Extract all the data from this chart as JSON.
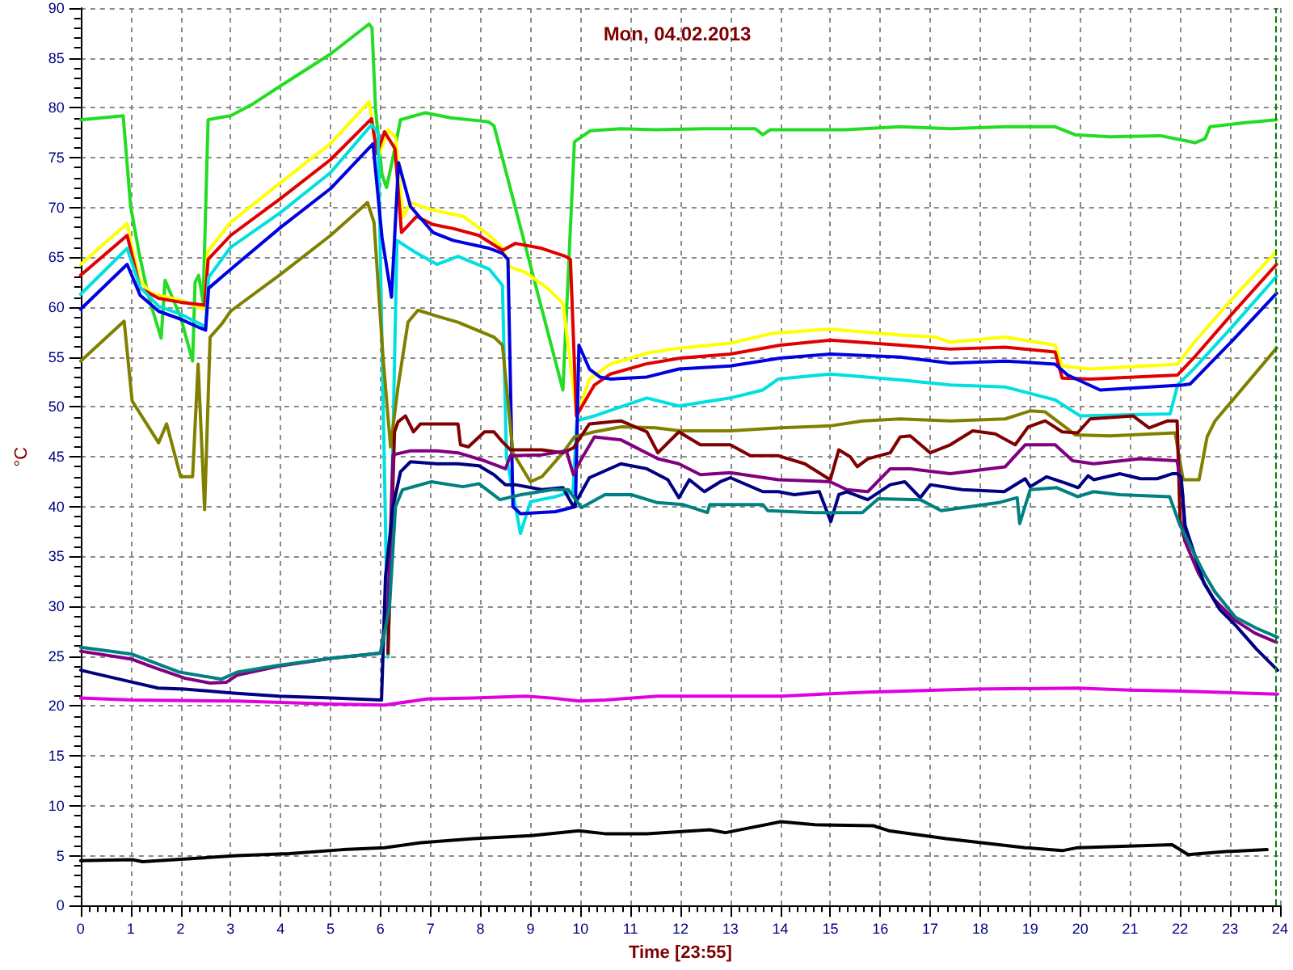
{
  "chart_data": {
    "type": "line",
    "title": "Mon, 04.02.2013",
    "xlabel": "Time [23:55]",
    "ylabel": "°C",
    "xlim": [
      0,
      24
    ],
    "xticks": [
      0,
      1,
      2,
      3,
      4,
      5,
      6,
      7,
      8,
      9,
      10,
      11,
      12,
      13,
      14,
      15,
      16,
      17,
      18,
      19,
      20,
      21,
      22,
      23,
      24
    ],
    "ylim": [
      0,
      90
    ],
    "yticks": [
      0,
      5,
      10,
      15,
      20,
      25,
      30,
      35,
      40,
      45,
      50,
      55,
      60,
      65,
      70,
      75,
      80,
      85,
      90
    ],
    "grid": true,
    "marker": "none",
    "ref_lines": [
      {
        "axis": "x",
        "value": 23.92,
        "color": "#008000",
        "line_style": "dashed"
      }
    ],
    "series": [
      {
        "color": "#22dd22",
        "x": [
          0,
          0.85,
          1.0,
          1.17,
          1.35,
          1.61,
          1.69,
          2.0,
          2.24,
          2.29,
          2.36,
          2.45,
          2.55,
          2.75,
          3.0,
          3.45,
          4.0,
          5.0,
          5.77,
          5.83,
          5.9,
          6.03,
          6.12,
          6.25,
          6.4,
          6.9,
          7.4,
          8.16,
          8.27,
          9.65,
          9.88,
          10.2,
          10.8,
          11.5,
          12.5,
          13.5,
          13.65,
          13.8,
          14.5,
          15.3,
          16.4,
          17.4,
          18.5,
          19.5,
          19.9,
          20.6,
          21.6,
          22.0,
          22.3,
          22.5,
          22.6,
          23.3,
          23.93
        ],
        "values": [
          78.8,
          79.2,
          70.1,
          65.4,
          61.2,
          56.9,
          62.7,
          59.0,
          54.6,
          62.5,
          63.2,
          60.5,
          78.8,
          79.0,
          79.2,
          80.4,
          82.2,
          85.4,
          88.4,
          88.0,
          79.9,
          73.3,
          72.0,
          75.0,
          78.8,
          79.5,
          79.0,
          78.6,
          78.2,
          51.7,
          76.6,
          77.7,
          77.9,
          77.8,
          77.9,
          77.9,
          77.3,
          77.8,
          77.8,
          77.8,
          78.1,
          77.9,
          78.1,
          78.1,
          77.3,
          77.1,
          77.2,
          76.8,
          76.5,
          76.9,
          78.1,
          78.5,
          78.8
        ]
      },
      {
        "color": "#ffff00",
        "x": [
          0,
          0.93,
          1.03,
          1.19,
          1.4,
          2.0,
          2.48,
          2.54,
          3.0,
          4.0,
          5.0,
          5.77,
          5.95,
          6.15,
          6.3,
          6.45,
          6.6,
          7.0,
          7.66,
          8.18,
          8.44,
          8.6,
          8.9,
          9.34,
          9.65,
          9.93,
          10.18,
          10.6,
          11.33,
          11.97,
          13.0,
          13.86,
          15.0,
          16.4,
          17.1,
          17.4,
          18.5,
          19.5,
          19.64,
          20.2,
          21.95,
          22.27,
          23.0,
          23.93
        ],
        "values": [
          64.3,
          68.4,
          65.9,
          62.7,
          61.4,
          60.7,
          59.8,
          65.6,
          68.5,
          72.5,
          76.4,
          80.6,
          75.0,
          77.8,
          77.0,
          69.0,
          70.5,
          69.8,
          69.1,
          67.2,
          65.9,
          64.0,
          63.5,
          61.9,
          60.4,
          49.1,
          52.8,
          54.3,
          55.4,
          55.9,
          56.4,
          57.4,
          57.8,
          57.2,
          57.0,
          56.5,
          57.0,
          56.2,
          54.1,
          53.8,
          54.3,
          56.4,
          60.6,
          65.6
        ]
      },
      {
        "color": "#e00000",
        "x": [
          0,
          0.93,
          1.19,
          1.56,
          2.0,
          2.48,
          2.55,
          3.0,
          4.0,
          5.0,
          5.82,
          5.93,
          6.08,
          6.29,
          6.42,
          6.72,
          7.05,
          7.45,
          7.97,
          8.44,
          8.7,
          9.23,
          9.7,
          9.8,
          9.92,
          10.28,
          10.6,
          11.3,
          12.0,
          13.0,
          14.0,
          15.0,
          16.4,
          17.4,
          18.5,
          19.5,
          19.64,
          20.2,
          21.95,
          22.27,
          23.0,
          23.93
        ],
        "values": [
          63.2,
          67.2,
          61.9,
          60.9,
          60.5,
          60.2,
          64.8,
          67.2,
          70.9,
          74.8,
          78.9,
          75.4,
          77.6,
          75.9,
          67.5,
          69.1,
          68.3,
          67.9,
          67.2,
          65.7,
          66.4,
          65.9,
          65.1,
          64.8,
          49.1,
          52.2,
          53.3,
          54.3,
          54.9,
          55.3,
          56.2,
          56.7,
          56.2,
          55.8,
          56.0,
          55.5,
          52.9,
          52.8,
          53.2,
          54.9,
          59.1,
          64.3
        ]
      },
      {
        "color": "#00e0e0",
        "x": [
          0,
          0.93,
          1.19,
          1.56,
          2.0,
          2.4,
          2.5,
          2.56,
          3.0,
          4.0,
          5.0,
          5.82,
          5.95,
          6.15,
          6.22,
          6.33,
          6.7,
          7.13,
          7.55,
          8.18,
          8.44,
          8.52,
          8.8,
          9.0,
          9.5,
          9.85,
          9.93,
          10.28,
          11.33,
          11.97,
          13.0,
          13.65,
          13.96,
          15.0,
          16.4,
          17.4,
          18.5,
          19.5,
          20.0,
          21.8,
          21.95,
          22.27,
          23.0,
          23.93
        ],
        "values": [
          61.3,
          65.9,
          62.0,
          60.1,
          59.3,
          58.3,
          58.0,
          63.0,
          66.0,
          69.5,
          73.5,
          78.3,
          77.5,
          24.9,
          40.0,
          66.7,
          65.5,
          64.3,
          65.1,
          63.8,
          62.2,
          45.0,
          37.3,
          40.5,
          41.0,
          41.5,
          48.6,
          49.1,
          50.9,
          50.1,
          50.9,
          51.7,
          52.8,
          53.3,
          52.7,
          52.2,
          52.0,
          50.7,
          49.1,
          49.3,
          52.2,
          53.8,
          57.8,
          63.1
        ]
      },
      {
        "color": "#0000e0",
        "x": [
          0,
          0.93,
          1.19,
          1.56,
          2.0,
          2.4,
          2.5,
          2.56,
          3.0,
          4.0,
          5.0,
          5.85,
          6.03,
          6.22,
          6.36,
          6.6,
          7.05,
          7.45,
          8.18,
          8.44,
          8.55,
          8.65,
          8.8,
          9.5,
          9.9,
          9.97,
          10.18,
          10.39,
          10.6,
          11.33,
          11.97,
          13.0,
          14.0,
          15.0,
          16.4,
          17.4,
          18.5,
          19.5,
          19.75,
          20.4,
          22.06,
          22.2,
          23.0,
          23.93
        ],
        "values": [
          59.8,
          64.3,
          61.2,
          59.6,
          58.8,
          57.9,
          57.7,
          61.9,
          63.8,
          68.0,
          71.9,
          76.4,
          67.0,
          61.0,
          74.5,
          70.1,
          67.5,
          66.7,
          65.9,
          65.4,
          64.8,
          40.0,
          39.3,
          39.5,
          40.0,
          56.2,
          53.8,
          53.0,
          52.8,
          53.0,
          53.8,
          54.1,
          54.9,
          55.3,
          55.0,
          54.4,
          54.6,
          54.3,
          53.2,
          51.7,
          52.2,
          52.3,
          56.4,
          61.4
        ]
      },
      {
        "color": "#808000",
        "x": [
          0,
          0.87,
          1.03,
          1.56,
          1.72,
          2.0,
          2.24,
          2.35,
          2.48,
          2.59,
          2.82,
          3.0,
          4.0,
          5.0,
          5.74,
          5.87,
          6.05,
          6.2,
          6.35,
          6.55,
          6.75,
          7.13,
          7.55,
          8.27,
          8.44,
          8.65,
          9.0,
          9.23,
          9.65,
          9.88,
          10.28,
          10.81,
          11.5,
          12.0,
          13.0,
          14.0,
          15.0,
          15.65,
          16.4,
          17.4,
          18.5,
          19.0,
          19.3,
          19.75,
          19.9,
          20.6,
          21.9,
          22.06,
          22.38,
          22.54,
          22.7,
          23.93
        ],
        "values": [
          54.6,
          58.6,
          50.6,
          46.4,
          48.3,
          43.0,
          43.0,
          54.3,
          39.7,
          57.0,
          58.3,
          59.6,
          63.3,
          67.2,
          70.5,
          68.5,
          55.0,
          46.0,
          52.0,
          58.5,
          59.7,
          59.1,
          58.5,
          57.0,
          56.2,
          45.4,
          42.5,
          43.0,
          45.4,
          47.0,
          47.5,
          48.0,
          47.9,
          47.6,
          47.6,
          47.9,
          48.1,
          48.6,
          48.8,
          48.6,
          48.8,
          49.6,
          49.5,
          47.8,
          47.2,
          47.1,
          47.4,
          42.7,
          42.7,
          47.0,
          48.6,
          55.9
        ]
      },
      {
        "color": "#800000",
        "x": [
          6.15,
          6.28,
          6.35,
          6.5,
          6.66,
          6.8,
          7.13,
          7.55,
          7.6,
          7.76,
          8.08,
          8.27,
          8.44,
          8.6,
          9.23,
          9.65,
          9.86,
          10.18,
          10.81,
          11.33,
          11.55,
          11.97,
          12.4,
          13.0,
          13.4,
          13.96,
          14.49,
          15.0,
          15.17,
          15.4,
          15.54,
          15.75,
          16.2,
          16.4,
          16.6,
          17.0,
          17.4,
          17.85,
          18.3,
          18.7,
          18.96,
          19.3,
          19.64,
          19.95,
          20.2,
          21.06,
          21.38,
          21.75,
          21.94,
          22.0,
          22.1
        ],
        "values": [
          25.3,
          47.5,
          48.5,
          49.1,
          47.5,
          48.3,
          48.3,
          48.3,
          46.2,
          46.0,
          47.5,
          47.5,
          46.5,
          45.7,
          45.7,
          45.4,
          45.9,
          48.3,
          48.6,
          47.5,
          45.4,
          47.5,
          46.2,
          46.2,
          45.1,
          45.1,
          44.3,
          42.7,
          45.7,
          45.0,
          44.0,
          44.8,
          45.4,
          47.0,
          47.1,
          45.4,
          46.2,
          47.6,
          47.3,
          46.2,
          48.0,
          48.6,
          47.5,
          47.4,
          48.8,
          49.1,
          47.9,
          48.6,
          48.6,
          38.6,
          36.5
        ]
      },
      {
        "color": "#800080",
        "x": [
          0,
          1.03,
          1.45,
          2.08,
          2.6,
          2.92,
          3.13,
          3.97,
          5.03,
          6.0,
          6.15,
          6.25,
          6.6,
          7.13,
          7.55,
          8.08,
          8.5,
          8.6,
          9.23,
          9.72,
          9.86,
          10.0,
          10.28,
          10.81,
          11.55,
          11.97,
          12.4,
          13.0,
          13.96,
          15.0,
          15.33,
          15.75,
          16.2,
          16.6,
          17.4,
          18.5,
          18.9,
          19.5,
          19.85,
          20.27,
          21.2,
          21.94,
          22.05,
          22.1,
          22.37,
          22.68,
          23.1,
          23.5,
          23.93
        ],
        "values": [
          25.5,
          24.7,
          23.9,
          22.8,
          22.3,
          22.4,
          23.1,
          24.0,
          24.8,
          25.3,
          30.0,
          45.2,
          45.6,
          45.6,
          45.4,
          44.6,
          43.8,
          45.1,
          45.2,
          45.6,
          43.2,
          44.6,
          47.0,
          46.7,
          44.8,
          44.3,
          43.2,
          43.4,
          42.7,
          42.5,
          41.7,
          41.5,
          43.8,
          43.8,
          43.3,
          44.0,
          46.2,
          46.2,
          44.6,
          44.3,
          44.8,
          44.6,
          41.2,
          36.5,
          33.3,
          30.7,
          28.6,
          27.3,
          26.4
        ]
      },
      {
        "color": "#000080",
        "x": [
          0,
          1.03,
          1.55,
          2.08,
          3.06,
          3.97,
          5.03,
          6.02,
          6.1,
          6.25,
          6.4,
          6.6,
          7.13,
          7.55,
          7.97,
          8.27,
          8.5,
          8.7,
          9.23,
          9.65,
          9.86,
          10.18,
          10.81,
          11.33,
          11.75,
          11.97,
          12.18,
          12.48,
          12.8,
          13.0,
          13.65,
          13.96,
          14.28,
          14.78,
          15.01,
          15.17,
          15.33,
          15.75,
          16.2,
          16.49,
          16.8,
          17.0,
          17.64,
          18.48,
          18.9,
          19.0,
          19.33,
          19.74,
          19.96,
          20.16,
          20.27,
          20.8,
          21.21,
          21.54,
          21.84,
          21.94,
          22.02,
          22.1,
          22.48,
          22.79,
          23.11,
          23.53,
          23.95
        ],
        "values": [
          23.6,
          22.4,
          21.8,
          21.7,
          21.3,
          21.0,
          20.8,
          20.6,
          33.0,
          40.0,
          43.5,
          44.5,
          44.3,
          44.3,
          44.1,
          43.2,
          42.2,
          42.2,
          41.7,
          41.9,
          40.0,
          42.9,
          44.3,
          43.8,
          42.7,
          40.9,
          42.7,
          41.5,
          42.5,
          42.9,
          41.5,
          41.5,
          41.2,
          41.5,
          38.5,
          41.2,
          41.5,
          40.7,
          42.2,
          42.5,
          40.9,
          42.2,
          41.7,
          41.5,
          42.8,
          42.0,
          43.0,
          42.3,
          41.9,
          43.1,
          42.7,
          43.3,
          42.8,
          42.8,
          43.3,
          43.3,
          43.0,
          38.1,
          32.3,
          29.7,
          28.1,
          25.7,
          23.6
        ]
      },
      {
        "color": "#008080",
        "x": [
          0,
          1.03,
          1.98,
          2.82,
          3.13,
          3.97,
          5.03,
          6.0,
          6.18,
          6.3,
          6.44,
          7.02,
          7.65,
          7.97,
          8.39,
          8.81,
          9.44,
          9.76,
          10.02,
          10.49,
          11.02,
          11.54,
          12.06,
          12.54,
          12.59,
          13.65,
          13.75,
          14.69,
          15.64,
          15.96,
          16.8,
          17.22,
          18.37,
          18.74,
          18.79,
          19.0,
          19.53,
          19.95,
          20.27,
          20.79,
          21.79,
          22.0,
          22.16,
          22.48,
          22.69,
          23.11,
          23.53,
          23.95
        ],
        "values": [
          25.9,
          25.2,
          23.4,
          22.7,
          23.4,
          24.1,
          24.8,
          25.3,
          30.0,
          40.0,
          41.7,
          42.5,
          42.0,
          42.3,
          40.7,
          41.2,
          41.7,
          41.7,
          39.9,
          41.2,
          41.2,
          40.4,
          40.2,
          39.4,
          40.2,
          40.2,
          39.6,
          39.4,
          39.4,
          40.8,
          40.7,
          39.6,
          40.4,
          40.9,
          38.3,
          41.7,
          41.9,
          41.0,
          41.5,
          41.2,
          41.0,
          38.1,
          36.5,
          33.3,
          31.5,
          28.9,
          27.8,
          26.9
        ]
      },
      {
        "color": "#e000e0",
        "x": [
          0,
          1.03,
          3.13,
          5.03,
          6.08,
          6.92,
          7.86,
          8.91,
          9.44,
          9.97,
          10.49,
          11.54,
          13.01,
          14.01,
          15.75,
          17.85,
          19.95,
          21.0,
          22.05,
          23.95
        ],
        "values": [
          20.8,
          20.6,
          20.5,
          20.2,
          20.1,
          20.7,
          20.8,
          21.0,
          20.8,
          20.5,
          20.6,
          21.0,
          21.0,
          21.0,
          21.4,
          21.7,
          21.8,
          21.6,
          21.5,
          21.2
        ]
      },
      {
        "color": "#000000",
        "x": [
          0,
          1.03,
          1.24,
          3.13,
          4.18,
          5.24,
          6.08,
          6.81,
          7.86,
          9.02,
          9.97,
          10.49,
          11.33,
          12.59,
          12.9,
          14.01,
          14.69,
          15.86,
          16.17,
          17.32,
          18.9,
          19.64,
          19.95,
          21.84,
          22.16,
          22.9,
          23.74
        ],
        "values": [
          4.5,
          4.6,
          4.4,
          5.0,
          5.2,
          5.6,
          5.8,
          6.3,
          6.7,
          7.0,
          7.5,
          7.2,
          7.2,
          7.6,
          7.3,
          8.4,
          8.1,
          8.0,
          7.5,
          6.7,
          5.8,
          5.5,
          5.8,
          6.1,
          5.1,
          5.4,
          5.6
        ]
      }
    ]
  }
}
